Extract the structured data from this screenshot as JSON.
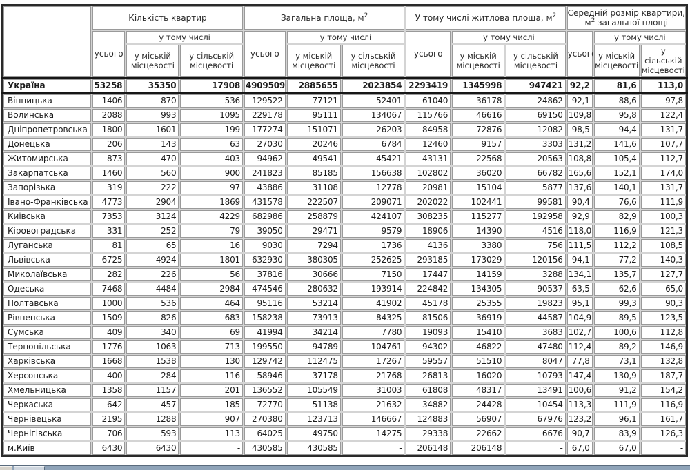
{
  "table": {
    "corner_label": "",
    "groups": [
      {
        "pre": "Кількість квартир",
        "sup": "",
        "post": ""
      },
      {
        "pre": "Загальна площа, м",
        "sup": "2",
        "post": ""
      },
      {
        "pre": "У тому числі житлова площа, м",
        "sup": "2",
        "post": ""
      },
      {
        "pre": "Середній розмір квартири, м",
        "sup": "2",
        "post": " загальної площі"
      }
    ],
    "subheaders": {
      "total": "усього",
      "including": "у тому числі",
      "urban": "у міській місцевості",
      "rural": "у сільській місцевості"
    },
    "rows": [
      {
        "name": "Україна",
        "bold": true,
        "values": [
          "53258",
          "35350",
          "17908",
          "4909509",
          "2885655",
          "2023854",
          "2293419",
          "1345998",
          "947421",
          "92,2",
          "81,6",
          "113,0"
        ]
      },
      {
        "name": "Вінницька",
        "values": [
          "1406",
          "870",
          "536",
          "129522",
          "77121",
          "52401",
          "61040",
          "36178",
          "24862",
          "92,1",
          "88,6",
          "97,8"
        ]
      },
      {
        "name": "Волинська",
        "values": [
          "2088",
          "993",
          "1095",
          "229178",
          "95111",
          "134067",
          "115766",
          "46616",
          "69150",
          "109,8",
          "95,8",
          "122,4"
        ]
      },
      {
        "name": "Дніпропетровська",
        "values": [
          "1800",
          "1601",
          "199",
          "177274",
          "151071",
          "26203",
          "84958",
          "72876",
          "12082",
          "98,5",
          "94,4",
          "131,7"
        ]
      },
      {
        "name": "Донецька",
        "values": [
          "206",
          "143",
          "63",
          "27030",
          "20246",
          "6784",
          "12460",
          "9157",
          "3303",
          "131,2",
          "141,6",
          "107,7"
        ]
      },
      {
        "name": "Житомирська",
        "values": [
          "873",
          "470",
          "403",
          "94962",
          "49541",
          "45421",
          "43131",
          "22568",
          "20563",
          "108,8",
          "105,4",
          "112,7"
        ]
      },
      {
        "name": "Закарпатська",
        "values": [
          "1460",
          "560",
          "900",
          "241823",
          "85185",
          "156638",
          "102802",
          "36020",
          "66782",
          "165,6",
          "152,1",
          "174,0"
        ]
      },
      {
        "name": "Запорізька",
        "values": [
          "319",
          "222",
          "97",
          "43886",
          "31108",
          "12778",
          "20981",
          "15104",
          "5877",
          "137,6",
          "140,1",
          "131,7"
        ]
      },
      {
        "name": "Івано-Франківська",
        "values": [
          "4773",
          "2904",
          "1869",
          "431578",
          "222507",
          "209071",
          "202022",
          "102441",
          "99581",
          "90,4",
          "76,6",
          "111,9"
        ]
      },
      {
        "name": "Київська",
        "values": [
          "7353",
          "3124",
          "4229",
          "682986",
          "258879",
          "424107",
          "308235",
          "115277",
          "192958",
          "92,9",
          "82,9",
          "100,3"
        ]
      },
      {
        "name": "Кіровоградська",
        "values": [
          "331",
          "252",
          "79",
          "39050",
          "29471",
          "9579",
          "18906",
          "14390",
          "4516",
          "118,0",
          "116,9",
          "121,3"
        ]
      },
      {
        "name": "Луганська",
        "values": [
          "81",
          "65",
          "16",
          "9030",
          "7294",
          "1736",
          "4136",
          "3380",
          "756",
          "111,5",
          "112,2",
          "108,5"
        ]
      },
      {
        "name": "Львівська",
        "values": [
          "6725",
          "4924",
          "1801",
          "632930",
          "380305",
          "252625",
          "293185",
          "173029",
          "120156",
          "94,1",
          "77,2",
          "140,3"
        ]
      },
      {
        "name": "Миколаївська",
        "values": [
          "282",
          "226",
          "56",
          "37816",
          "30666",
          "7150",
          "17447",
          "14159",
          "3288",
          "134,1",
          "135,7",
          "127,7"
        ]
      },
      {
        "name": "Одеська",
        "values": [
          "7468",
          "4484",
          "2984",
          "474546",
          "280632",
          "193914",
          "224842",
          "134305",
          "90537",
          "63,5",
          "62,6",
          "65,0"
        ]
      },
      {
        "name": "Полтавська",
        "values": [
          "1000",
          "536",
          "464",
          "95116",
          "53214",
          "41902",
          "45178",
          "25355",
          "19823",
          "95,1",
          "99,3",
          "90,3"
        ]
      },
      {
        "name": "Рівненська",
        "values": [
          "1509",
          "826",
          "683",
          "158238",
          "73913",
          "84325",
          "81506",
          "36919",
          "44587",
          "104,9",
          "89,5",
          "123,5"
        ]
      },
      {
        "name": "Сумська",
        "values": [
          "409",
          "340",
          "69",
          "41994",
          "34214",
          "7780",
          "19093",
          "15410",
          "3683",
          "102,7",
          "100,6",
          "112,8"
        ]
      },
      {
        "name": "Тернопільська",
        "values": [
          "1776",
          "1063",
          "713",
          "199550",
          "94789",
          "104761",
          "94302",
          "46822",
          "47480",
          "112,4",
          "89,2",
          "146,9"
        ]
      },
      {
        "name": "Харківська",
        "values": [
          "1668",
          "1538",
          "130",
          "129742",
          "112475",
          "17267",
          "59557",
          "51510",
          "8047",
          "77,8",
          "73,1",
          "132,8"
        ]
      },
      {
        "name": "Херсонська",
        "values": [
          "400",
          "284",
          "116",
          "58946",
          "37178",
          "21768",
          "26813",
          "16020",
          "10793",
          "147,4",
          "130,9",
          "187,7"
        ]
      },
      {
        "name": "Хмельницька",
        "values": [
          "1358",
          "1157",
          "201",
          "136552",
          "105549",
          "31003",
          "61808",
          "48317",
          "13491",
          "100,6",
          "91,2",
          "154,2"
        ]
      },
      {
        "name": "Черкаська",
        "values": [
          "642",
          "457",
          "185",
          "72770",
          "51138",
          "21632",
          "34882",
          "24428",
          "10454",
          "113,3",
          "111,9",
          "116,9"
        ]
      },
      {
        "name": "Чернівецька",
        "values": [
          "2195",
          "1288",
          "907",
          "270380",
          "123713",
          "146667",
          "124883",
          "56907",
          "67976",
          "123,2",
          "96,1",
          "161,7"
        ]
      },
      {
        "name": "Чернігівська",
        "values": [
          "706",
          "593",
          "113",
          "64025",
          "49750",
          "14275",
          "29338",
          "22662",
          "6676",
          "90,7",
          "83,9",
          "126,3"
        ]
      },
      {
        "name": "м.Київ",
        "values": [
          "6430",
          "6430",
          "-",
          "430585",
          "430585",
          "-",
          "206148",
          "206148",
          "-",
          "67,0",
          "67,0",
          "-"
        ]
      }
    ]
  },
  "colors": {
    "cell_border": "#9a9a9a",
    "grid_gap": "#d4d4d4",
    "table_border": "#2a2a2a",
    "total_row_border": "#161616",
    "scrollbar_track": "#8fa3b8",
    "scrollbar_button": "#d6d2ca"
  }
}
